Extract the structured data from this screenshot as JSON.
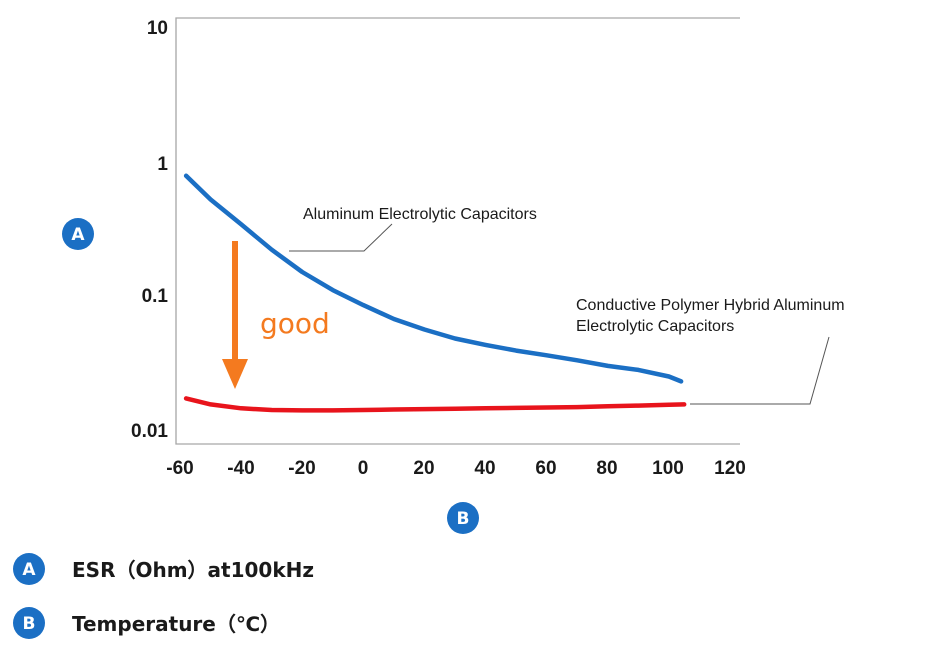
{
  "chart_data": {
    "type": "line",
    "title": "",
    "xlabel": "B",
    "ylabel": "A",
    "x_scale": "linear",
    "y_scale": "log",
    "xlim": [
      -60,
      120
    ],
    "ylim": [
      0.01,
      10
    ],
    "x_ticks": [
      "-60",
      "-40",
      "-20",
      "0",
      "20",
      "40",
      "60",
      "80",
      "100",
      "120"
    ],
    "y_ticks": [
      "10",
      "1",
      "0.1",
      "0.01"
    ],
    "series": [
      {
        "name": "Aluminum Electrolytic Capacitors",
        "color": "#1b6fc4",
        "x": [
          -58,
          -50,
          -40,
          -30,
          -20,
          -10,
          0,
          10,
          20,
          30,
          40,
          50,
          60,
          70,
          80,
          90,
          100,
          104
        ],
        "y": [
          0.78,
          0.52,
          0.34,
          0.22,
          0.15,
          0.11,
          0.085,
          0.067,
          0.056,
          0.048,
          0.043,
          0.039,
          0.036,
          0.033,
          0.03,
          0.028,
          0.025,
          0.023
        ]
      },
      {
        "name": "Conductive Polymer Hybrid Aluminum Electrolytic Capacitors",
        "color": "#e8141c",
        "x": [
          -58,
          -50,
          -40,
          -30,
          -20,
          -10,
          0,
          10,
          20,
          30,
          40,
          50,
          60,
          70,
          80,
          90,
          100,
          105
        ],
        "y": [
          0.0172,
          0.0155,
          0.0145,
          0.0141,
          0.014,
          0.014,
          0.0141,
          0.0142,
          0.0143,
          0.0144,
          0.0145,
          0.0146,
          0.0147,
          0.0148,
          0.015,
          0.0152,
          0.0154,
          0.0155
        ]
      }
    ],
    "annotations": {
      "series_1_label": "Aluminum Electrolytic Capacitors",
      "series_2_label_line1": "Conductive Polymer Hybrid Aluminum",
      "series_2_label_line2": "Electrolytic Capacitors",
      "arrow_text": "good",
      "arrow_color": "#f47a1f"
    },
    "axis_badges": {
      "y": "A",
      "x": "B",
      "color": "#1b6fc4"
    },
    "legend": [
      {
        "badge": "A",
        "text": "ESR（Ohm）at100kHz"
      },
      {
        "badge": "B",
        "text": "Temperature（℃）"
      }
    ]
  }
}
